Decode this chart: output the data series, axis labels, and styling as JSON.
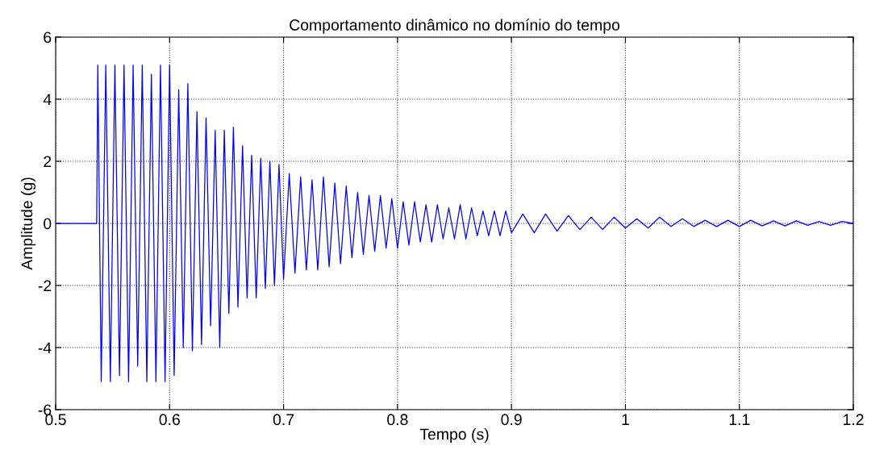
{
  "chart_data": {
    "type": "line",
    "title": "Comportamento dinâmico no domínio do tempo",
    "xlabel": "Tempo (s)",
    "ylabel": "Amplitude (g)",
    "xlim": [
      0.5,
      1.2
    ],
    "xticks": [
      0.5,
      0.6,
      0.7,
      0.8,
      0.9,
      1,
      1.1,
      1.2
    ],
    "ylim": [
      -6,
      6
    ],
    "yticks": [
      -6,
      -4,
      -2,
      0,
      2,
      4,
      6
    ],
    "grid": true,
    "marker": "none",
    "line_style": "solid",
    "series": [
      {
        "color": "#0000ff",
        "x": [
          0.5,
          0.536,
          0.537,
          0.54,
          0.544,
          0.548,
          0.552,
          0.556,
          0.56,
          0.564,
          0.568,
          0.572,
          0.576,
          0.58,
          0.584,
          0.588,
          0.592,
          0.596,
          0.6,
          0.604,
          0.608,
          0.612,
          0.616,
          0.62,
          0.624,
          0.628,
          0.632,
          0.636,
          0.64,
          0.644,
          0.648,
          0.652,
          0.656,
          0.66,
          0.664,
          0.668,
          0.672,
          0.676,
          0.68,
          0.684,
          0.688,
          0.692,
          0.696,
          0.7,
          0.705,
          0.71,
          0.715,
          0.72,
          0.725,
          0.73,
          0.735,
          0.74,
          0.745,
          0.75,
          0.755,
          0.76,
          0.765,
          0.77,
          0.775,
          0.78,
          0.785,
          0.79,
          0.795,
          0.8,
          0.805,
          0.81,
          0.815,
          0.82,
          0.825,
          0.83,
          0.835,
          0.84,
          0.845,
          0.85,
          0.855,
          0.86,
          0.865,
          0.87,
          0.875,
          0.88,
          0.885,
          0.89,
          0.895,
          0.9,
          0.91,
          0.92,
          0.93,
          0.94,
          0.95,
          0.96,
          0.97,
          0.98,
          0.99,
          1.0,
          1.01,
          1.02,
          1.03,
          1.04,
          1.05,
          1.06,
          1.07,
          1.08,
          1.09,
          1.1,
          1.11,
          1.12,
          1.13,
          1.14,
          1.15,
          1.16,
          1.17,
          1.18,
          1.19,
          1.2
        ],
        "values": [
          0,
          0,
          5.1,
          -5.1,
          5.1,
          -5.1,
          5.1,
          -4.9,
          5.1,
          -5.1,
          5.1,
          -4.6,
          5.1,
          -5.1,
          4.8,
          -5.1,
          5.1,
          -5.1,
          5.1,
          -4.9,
          4.3,
          -4.0,
          4.5,
          -4.1,
          3.6,
          -3.9,
          3.4,
          -3.3,
          3.0,
          -4.0,
          3.0,
          -2.9,
          3.1,
          -2.7,
          2.5,
          -2.4,
          2.2,
          -2.4,
          2.1,
          -2.1,
          2.0,
          -2.0,
          1.9,
          -1.8,
          1.6,
          -1.6,
          1.5,
          -1.5,
          1.4,
          -1.5,
          1.5,
          -1.4,
          1.3,
          -1.3,
          1.2,
          -1.1,
          1.0,
          -1.0,
          0.9,
          -0.9,
          0.9,
          -0.8,
          0.8,
          -0.8,
          0.7,
          -0.7,
          0.7,
          -0.6,
          0.6,
          -0.6,
          0.6,
          -0.5,
          0.5,
          -0.5,
          0.6,
          -0.5,
          0.5,
          -0.4,
          0.4,
          -0.4,
          0.4,
          -0.4,
          0.4,
          -0.3,
          0.3,
          -0.3,
          0.3,
          -0.25,
          0.25,
          -0.2,
          0.2,
          -0.2,
          0.2,
          -0.15,
          0.15,
          -0.15,
          0.2,
          -0.1,
          0.15,
          -0.1,
          0.1,
          -0.1,
          0.1,
          -0.1,
          0.1,
          -0.08,
          0.08,
          -0.08,
          0.08,
          -0.06,
          0.06,
          -0.06,
          0.06,
          0.0
        ]
      }
    ]
  }
}
